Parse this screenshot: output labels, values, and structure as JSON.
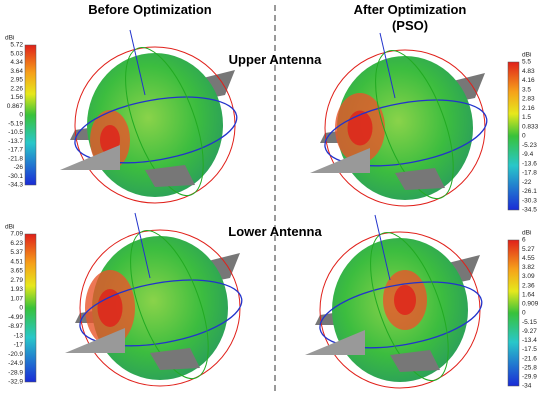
{
  "headers": {
    "before": "Before Optimization",
    "after_line1": "After Optimization",
    "after_line2": "(PSO)"
  },
  "rows": {
    "upper": "Upper Antenna",
    "lower": "Lower Antenna"
  },
  "panels": [
    {
      "unit": "dBi",
      "ticks": [
        "5.72",
        "5.03",
        "4.34",
        "3.64",
        "2.95",
        "2.26",
        "1.56",
        "0.867",
        "0",
        "-5.19",
        "-10.5",
        "-13.7",
        "-17.7",
        "-21.8",
        "-26",
        "-30.1",
        "-34.3"
      ]
    },
    {
      "unit": "dBi",
      "ticks": [
        "5.5",
        "4.83",
        "4.16",
        "3.5",
        "2.83",
        "2.16",
        "1.5",
        "0.833",
        "0",
        "-5.23",
        "-9.4",
        "-13.6",
        "-17.8",
        "-22",
        "-26.1",
        "-30.3",
        "-34.5"
      ]
    },
    {
      "unit": "dBi",
      "ticks": [
        "7.09",
        "6.23",
        "5.37",
        "4.51",
        "3.65",
        "2.79",
        "1.93",
        "1.07",
        "0",
        "-4.99",
        "-8.97",
        "-13",
        "-17",
        "-20.9",
        "-24.9",
        "-28.9",
        "-32.9"
      ]
    },
    {
      "unit": "dBi",
      "ticks": [
        "6",
        "5.27",
        "4.55",
        "3.82",
        "3.09",
        "2.36",
        "1.64",
        "0.909",
        "0",
        "-5.15",
        "-9.27",
        "-13.4",
        "-17.5",
        "-21.6",
        "-25.8",
        "-29.9",
        "-34"
      ]
    }
  ]
}
